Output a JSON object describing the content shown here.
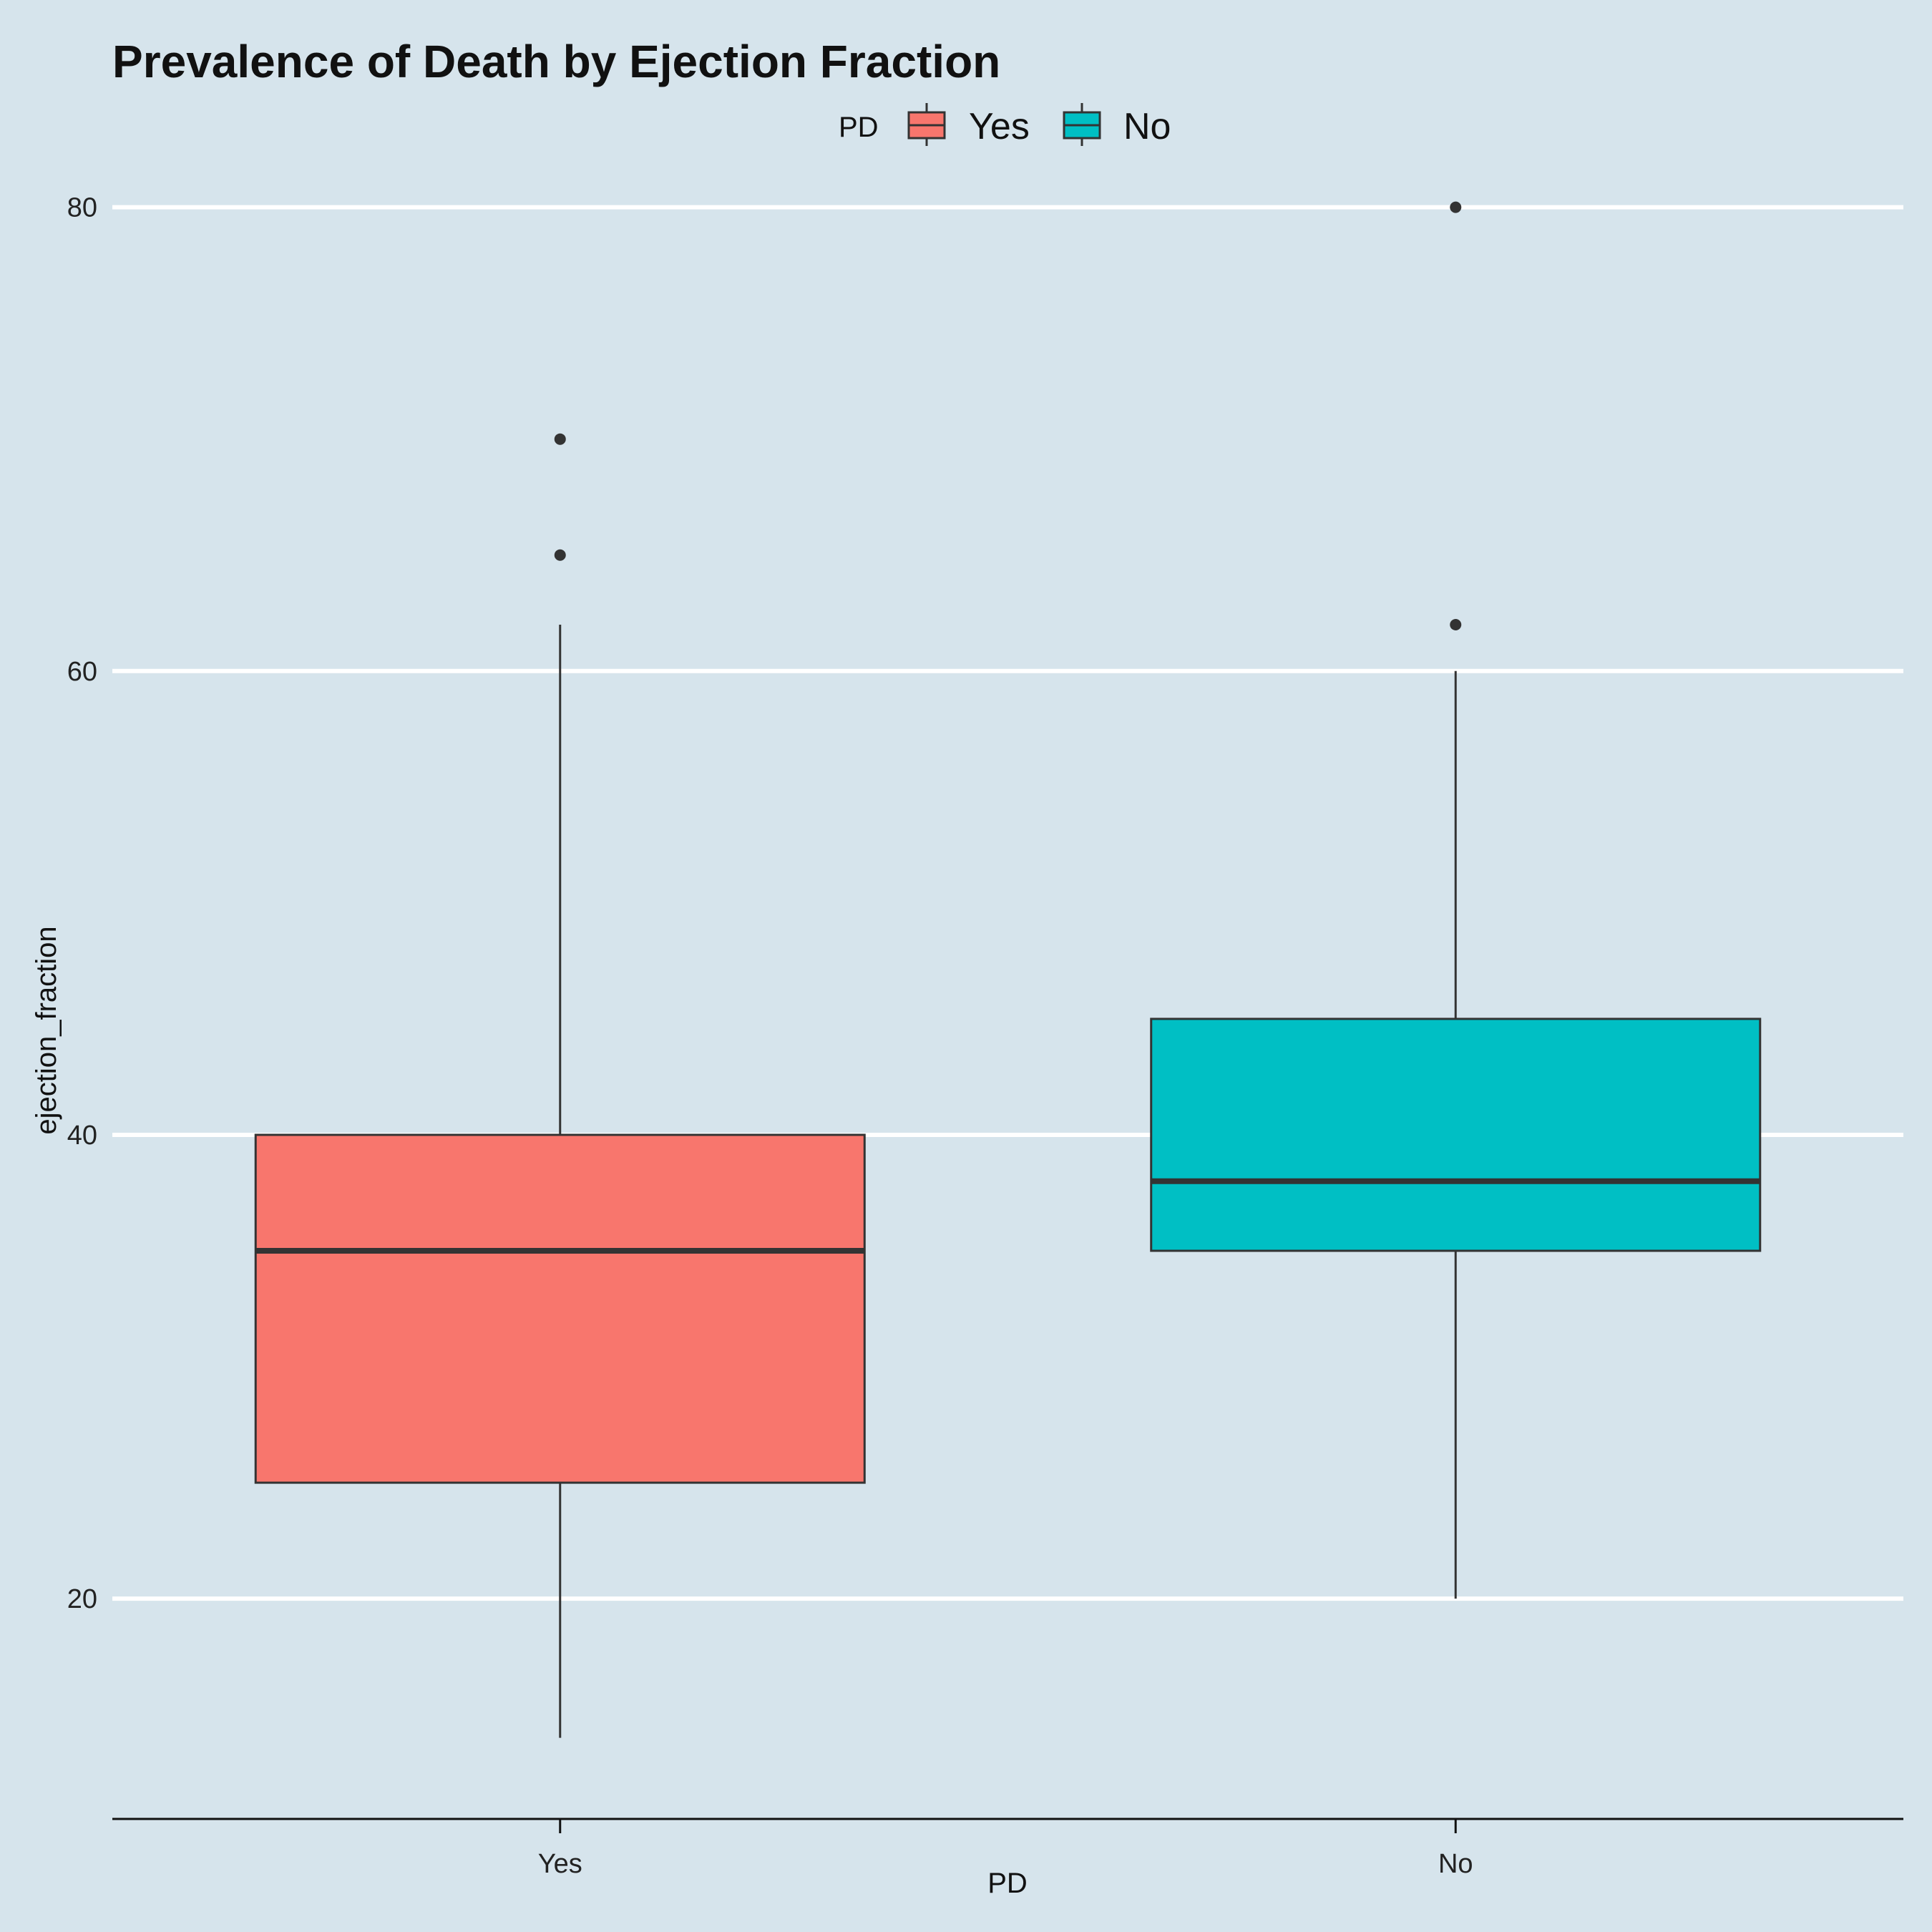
{
  "chart_data": {
    "type": "boxplot",
    "title": "Prevalence of Death by Ejection Fraction",
    "xlabel": "PD",
    "ylabel": "ejection_fraction",
    "ylim": [
      10.5,
      84
    ],
    "yticks": [
      20,
      40,
      60,
      80
    ],
    "grid": "horizontal major",
    "legend": {
      "title": "PD",
      "position": "top",
      "entries": [
        "Yes",
        "No"
      ]
    },
    "categories": [
      "Yes",
      "No"
    ],
    "series": [
      {
        "name": "Yes",
        "color": "#f8766d",
        "whisker_low": 14,
        "q1": 25,
        "median": 35,
        "q3": 40,
        "whisker_high": 62,
        "outliers": [
          65,
          70
        ]
      },
      {
        "name": "No",
        "color": "#00bfc4",
        "whisker_low": 20,
        "q1": 35,
        "median": 38,
        "q3": 45,
        "whisker_high": 60,
        "outliers": [
          62,
          80
        ]
      }
    ]
  }
}
